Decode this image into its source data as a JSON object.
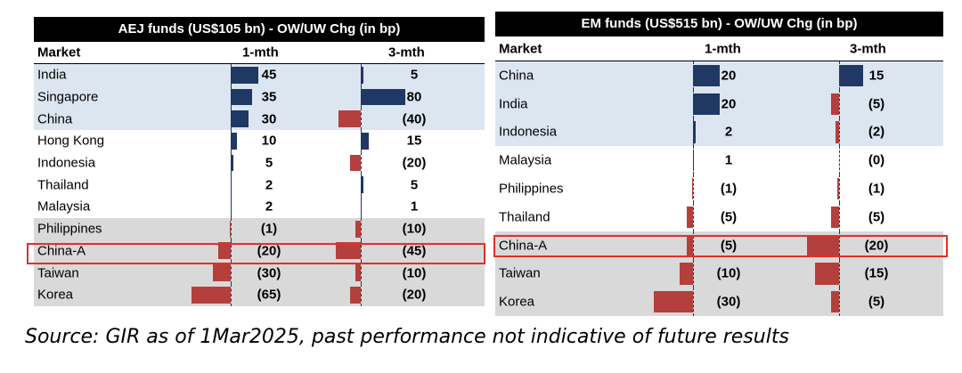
{
  "chart_data": [
    {
      "type": "table",
      "title": "AEJ funds (US$105 bn) - OW/UW Chg (in bp)",
      "columns": [
        "Market",
        "1-mth",
        "3-mth"
      ],
      "rows": [
        {
          "market": "India",
          "m1": 45,
          "m1_label": "45",
          "m3": 5,
          "m3_label": "5",
          "band": "blue"
        },
        {
          "market": "Singapore",
          "m1": 35,
          "m1_label": "35",
          "m3": 80,
          "m3_label": "80",
          "band": "blue"
        },
        {
          "market": "China",
          "m1": 30,
          "m1_label": "30",
          "m3": -40,
          "m3_label": "(40)",
          "band": "blue"
        },
        {
          "market": "Hong Kong",
          "m1": 10,
          "m1_label": "10",
          "m3": 15,
          "m3_label": "15",
          "band": "white"
        },
        {
          "market": "Indonesia",
          "m1": 5,
          "m1_label": "5",
          "m3": -20,
          "m3_label": "(20)",
          "band": "white"
        },
        {
          "market": "Thailand",
          "m1": 2,
          "m1_label": "2",
          "m3": 5,
          "m3_label": "5",
          "band": "white"
        },
        {
          "market": "Malaysia",
          "m1": 2,
          "m1_label": "2",
          "m3": 1,
          "m3_label": "1",
          "band": "white"
        },
        {
          "market": "Philippines",
          "m1": -1,
          "m1_label": "(1)",
          "m3": -10,
          "m3_label": "(10)",
          "band": "gray"
        },
        {
          "market": "China-A",
          "m1": -20,
          "m1_label": "(20)",
          "m3": -45,
          "m3_label": "(45)",
          "band": "gray",
          "highlight": true
        },
        {
          "market": "Taiwan",
          "m1": -30,
          "m1_label": "(30)",
          "m3": -10,
          "m3_label": "(10)",
          "band": "gray"
        },
        {
          "market": "Korea",
          "m1": -65,
          "m1_label": "(65)",
          "m3": -20,
          "m3_label": "(20)",
          "band": "gray"
        }
      ]
    },
    {
      "type": "table",
      "title": "EM funds (US$515 bn) - OW/UW Chg (in bp)",
      "columns": [
        "Market",
        "1-mth",
        "3-mth"
      ],
      "rows": [
        {
          "market": "China",
          "m1": 20,
          "m1_label": "20",
          "m3": 15,
          "m3_label": "15",
          "band": "blue"
        },
        {
          "market": "India",
          "m1": 20,
          "m1_label": "20",
          "m3": -5,
          "m3_label": "(5)",
          "band": "blue"
        },
        {
          "market": "Indonesia",
          "m1": 2,
          "m1_label": "2",
          "m3": -2,
          "m3_label": "(2)",
          "band": "blue"
        },
        {
          "market": "Malaysia",
          "m1": 1,
          "m1_label": "1",
          "m3": 0,
          "m3_label": "(0)",
          "band": "white"
        },
        {
          "market": "Philippines",
          "m1": -1,
          "m1_label": "(1)",
          "m3": -1,
          "m3_label": "(1)",
          "band": "white"
        },
        {
          "market": "Thailand",
          "m1": -5,
          "m1_label": "(5)",
          "m3": -5,
          "m3_label": "(5)",
          "band": "white"
        },
        {
          "market": "China-A",
          "m1": -5,
          "m1_label": "(5)",
          "m3": -20,
          "m3_label": "(20)",
          "band": "gray",
          "highlight": true
        },
        {
          "market": "Taiwan",
          "m1": -10,
          "m1_label": "(10)",
          "m3": -15,
          "m3_label": "(15)",
          "band": "gray"
        },
        {
          "market": "Korea",
          "m1": -30,
          "m1_label": "(30)",
          "m3": -5,
          "m3_label": "(5)",
          "band": "gray"
        }
      ]
    }
  ],
  "colors": {
    "positive": "#1f3864",
    "negative": "#b3403d",
    "highlight": "#e0302a",
    "band_blue": "#dce6f1",
    "band_gray": "#d9d9d9"
  },
  "source_note": "Source: GIR as of 1Mar2025, past performance not indicative of future results"
}
